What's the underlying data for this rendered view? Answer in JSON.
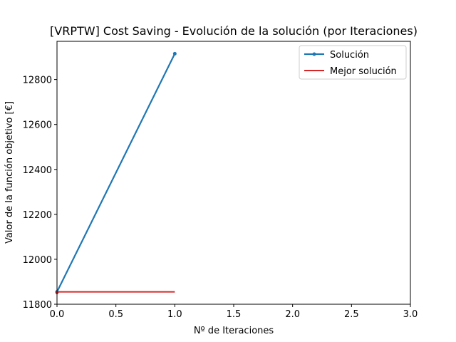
{
  "chart_data": {
    "type": "line",
    "title": "[VRPTW] Cost Saving - Evolución de la solución (por Iteraciones)",
    "xlabel": "Nº de Iteraciones",
    "ylabel": "Valor de la función objetivo [€]",
    "xlim": [
      0,
      3
    ],
    "ylim": [
      11800,
      12970
    ],
    "x_ticks": [
      0,
      0.5,
      1,
      1.5,
      2,
      2.5,
      3
    ],
    "x_tick_labels": [
      "0.0",
      "0.5",
      "1.0",
      "1.5",
      "2.0",
      "2.5",
      "3.0"
    ],
    "y_ticks": [
      11800,
      12000,
      12200,
      12400,
      12600,
      12800
    ],
    "y_tick_labels": [
      "11800",
      "12000",
      "12200",
      "12400",
      "12600",
      "12800"
    ],
    "grid": false,
    "legend_position": "top-right",
    "series": [
      {
        "name": "Solución",
        "color": "#1f77b4",
        "marker": "circle",
        "x": [
          0,
          1
        ],
        "y": [
          11855,
          12915
        ]
      },
      {
        "name": "Mejor solución",
        "color": "#d62728",
        "marker": "none",
        "x": [
          0,
          1
        ],
        "y": [
          11855,
          11855
        ]
      }
    ]
  }
}
